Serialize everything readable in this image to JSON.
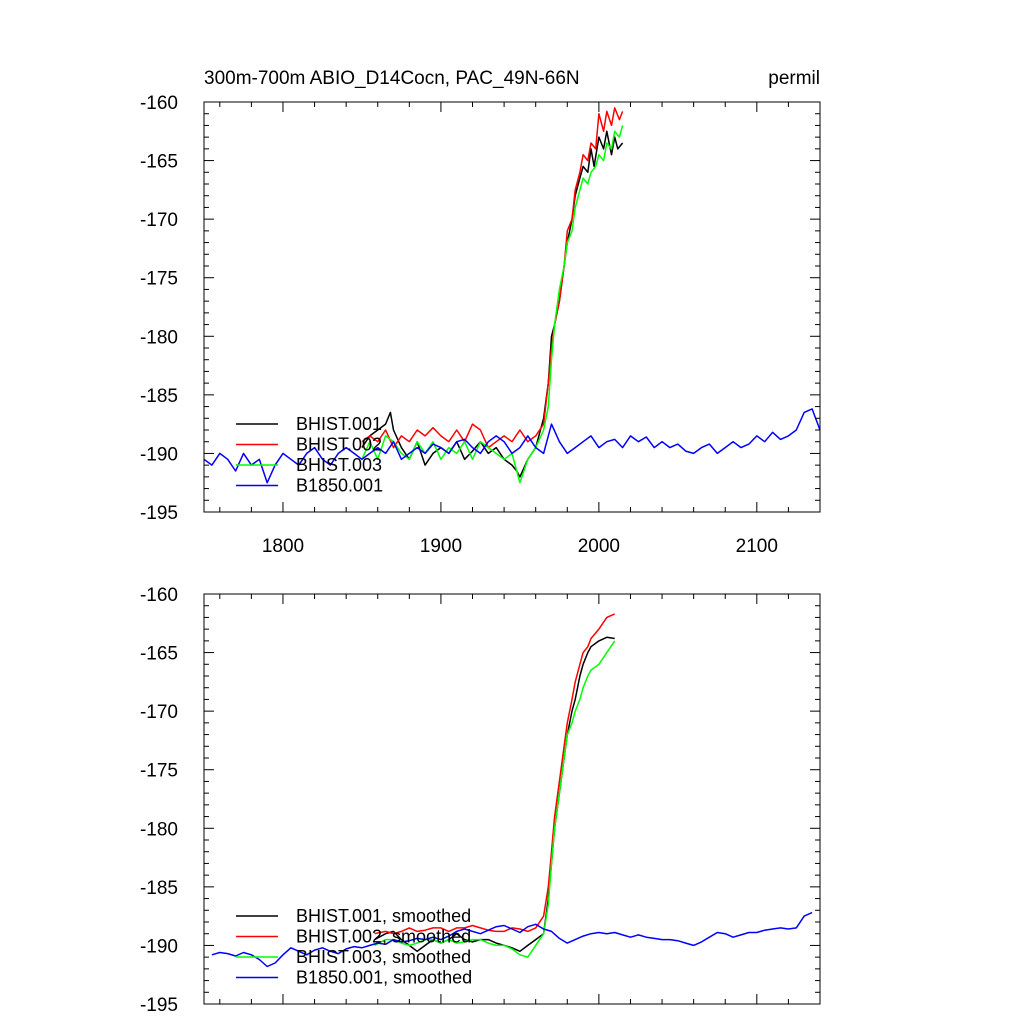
{
  "chart_data": [
    {
      "type": "line",
      "title_left": "300m-700m ABIO_D14Cocn, PAC_49N-66N",
      "title_right": "permil",
      "xlabel": "",
      "ylabel": "",
      "xlim": [
        1750,
        2140
      ],
      "ylim": [
        -195,
        -160
      ],
      "yticks": [
        "-160",
        "-165",
        "-170",
        "-175",
        "-180",
        "-185",
        "-190",
        "-195"
      ],
      "xticks": [
        "1800",
        "1900",
        "2000",
        "2100"
      ],
      "grid": false,
      "legend_position": "lower-left",
      "series": [
        {
          "name": "BHIST.001",
          "color": "#000000",
          "x": [
            1850,
            1855,
            1860,
            1865,
            1868,
            1870,
            1875,
            1880,
            1885,
            1890,
            1895,
            1900,
            1905,
            1910,
            1915,
            1920,
            1925,
            1930,
            1935,
            1940,
            1945,
            1948,
            1950,
            1955,
            1960,
            1965,
            1968,
            1970,
            1972,
            1975,
            1978,
            1980,
            1983,
            1985,
            1988,
            1990,
            1993,
            1995,
            1997,
            2000,
            2003,
            2005,
            2008,
            2010,
            2012,
            2015
          ],
          "values": [
            -189.5,
            -188.5,
            -188,
            -187.5,
            -186.5,
            -188,
            -189.5,
            -190.5,
            -189,
            -191,
            -190,
            -189.5,
            -190,
            -189,
            -190.5,
            -189.8,
            -189,
            -190,
            -189.5,
            -190.5,
            -191,
            -191.5,
            -192,
            -190.5,
            -189.5,
            -187,
            -184,
            -180,
            -179,
            -177,
            -174,
            -172,
            -170,
            -168,
            -166.5,
            -165.5,
            -166,
            -164,
            -165.5,
            -163,
            -164,
            -162.5,
            -164.5,
            -163,
            -164,
            -163.5
          ]
        },
        {
          "name": "BHIST.002",
          "color": "#ff0000",
          "x": [
            1850,
            1855,
            1860,
            1865,
            1870,
            1875,
            1880,
            1885,
            1890,
            1895,
            1900,
            1905,
            1910,
            1915,
            1920,
            1925,
            1930,
            1935,
            1940,
            1945,
            1950,
            1955,
            1960,
            1965,
            1968,
            1970,
            1972,
            1975,
            1978,
            1980,
            1983,
            1985,
            1988,
            1990,
            1993,
            1995,
            1998,
            2000,
            2003,
            2005,
            2008,
            2010,
            2013,
            2015
          ],
          "values": [
            -189,
            -188.5,
            -189,
            -188,
            -189.5,
            -188.5,
            -189,
            -188,
            -188.5,
            -187.8,
            -188.5,
            -189,
            -188,
            -189,
            -187.5,
            -188,
            -189.5,
            -189,
            -188.5,
            -189,
            -188,
            -189,
            -188.5,
            -187.5,
            -184,
            -181,
            -179,
            -177,
            -174,
            -171,
            -170,
            -167.5,
            -166,
            -164.5,
            -165,
            -163.5,
            -164,
            -161,
            -162.5,
            -160.8,
            -162,
            -160.5,
            -161.5,
            -160.8
          ]
        },
        {
          "name": "BHIST.003",
          "color": "#00ff00",
          "x": [
            1850,
            1855,
            1860,
            1865,
            1870,
            1875,
            1880,
            1885,
            1890,
            1895,
            1900,
            1905,
            1910,
            1915,
            1920,
            1925,
            1930,
            1935,
            1940,
            1945,
            1950,
            1955,
            1960,
            1965,
            1968,
            1970,
            1972,
            1975,
            1978,
            1980,
            1983,
            1985,
            1988,
            1990,
            1993,
            1995,
            1998,
            2000,
            2003,
            2005,
            2008,
            2010,
            2013,
            2015
          ],
          "values": [
            -190.5,
            -189,
            -190.5,
            -188.5,
            -189,
            -190,
            -190.5,
            -189,
            -190,
            -189,
            -190.5,
            -189.5,
            -190,
            -189,
            -190.5,
            -189,
            -189.5,
            -190,
            -190.5,
            -190,
            -192.5,
            -190.5,
            -189.5,
            -188,
            -186,
            -182,
            -179,
            -176,
            -174,
            -172,
            -171,
            -169,
            -167.5,
            -166.5,
            -167,
            -166,
            -165.5,
            -164.5,
            -165,
            -163.5,
            -164,
            -162.5,
            -163,
            -162
          ]
        },
        {
          "name": "B1850.001",
          "color": "#0000ff",
          "x": [
            1750,
            1755,
            1760,
            1765,
            1770,
            1775,
            1780,
            1785,
            1790,
            1795,
            1800,
            1805,
            1810,
            1815,
            1820,
            1825,
            1830,
            1835,
            1840,
            1845,
            1850,
            1855,
            1860,
            1865,
            1870,
            1875,
            1880,
            1885,
            1890,
            1895,
            1900,
            1905,
            1910,
            1915,
            1920,
            1925,
            1930,
            1935,
            1940,
            1945,
            1950,
            1955,
            1960,
            1965,
            1970,
            1975,
            1980,
            1985,
            1990,
            1995,
            2000,
            2005,
            2010,
            2015,
            2020,
            2025,
            2030,
            2035,
            2040,
            2045,
            2050,
            2055,
            2060,
            2065,
            2070,
            2075,
            2080,
            2085,
            2090,
            2095,
            2100,
            2105,
            2110,
            2115,
            2120,
            2125,
            2130,
            2135,
            2140
          ],
          "values": [
            -190.5,
            -191,
            -190,
            -190.5,
            -191.5,
            -190,
            -191,
            -190.5,
            -192.5,
            -191,
            -190,
            -190.5,
            -191,
            -190,
            -189.5,
            -190.5,
            -191,
            -190,
            -189.5,
            -190,
            -190.5,
            -190,
            -189.5,
            -190,
            -189,
            -190.5,
            -190,
            -189.5,
            -190,
            -189.2,
            -189.5,
            -190,
            -189,
            -188.8,
            -189.5,
            -190,
            -189,
            -188.5,
            -189,
            -190,
            -189.5,
            -188.5,
            -189.5,
            -190,
            -187.5,
            -189,
            -190,
            -189.5,
            -189,
            -188.5,
            -189.5,
            -189,
            -188.8,
            -189.5,
            -188.5,
            -189,
            -188.6,
            -189.5,
            -189,
            -189.5,
            -189.2,
            -189.8,
            -190,
            -189.5,
            -189.2,
            -190,
            -189.5,
            -189,
            -189.5,
            -189.2,
            -188.5,
            -189,
            -188.2,
            -188.8,
            -188.5,
            -188,
            -186.5,
            -186.2,
            -188
          ]
        }
      ]
    },
    {
      "type": "line",
      "xlabel": "",
      "ylabel": "",
      "xlim": [
        1750,
        2140
      ],
      "ylim": [
        -195,
        -160
      ],
      "yticks": [
        "-160",
        "-165",
        "-170",
        "-175",
        "-180",
        "-185",
        "-190",
        "-195"
      ],
      "grid": false,
      "legend_position": "lower-left",
      "series": [
        {
          "name": "BHIST.001, smoothed",
          "color": "#000000",
          "x": [
            1858,
            1865,
            1870,
            1875,
            1880,
            1885,
            1890,
            1895,
            1900,
            1905,
            1910,
            1915,
            1920,
            1925,
            1930,
            1935,
            1940,
            1945,
            1950,
            1955,
            1960,
            1965,
            1968,
            1970,
            1972,
            1975,
            1978,
            1980,
            1983,
            1985,
            1988,
            1990,
            1993,
            1995,
            2000,
            2005,
            2010
          ],
          "values": [
            -189.5,
            -189,
            -188.8,
            -189.5,
            -190,
            -190.5,
            -190,
            -189.5,
            -189.8,
            -189.5,
            -189,
            -189.5,
            -189.7,
            -189.5,
            -189.5,
            -189.8,
            -190,
            -190.2,
            -190.5,
            -190,
            -189.5,
            -189,
            -186,
            -183,
            -180,
            -177,
            -174,
            -172,
            -170,
            -169,
            -167,
            -166,
            -165,
            -164.5,
            -164,
            -163.7,
            -163.8
          ]
        },
        {
          "name": "BHIST.002, smoothed",
          "color": "#ff0000",
          "x": [
            1858,
            1865,
            1870,
            1875,
            1880,
            1885,
            1890,
            1895,
            1900,
            1905,
            1910,
            1915,
            1920,
            1925,
            1930,
            1935,
            1940,
            1945,
            1950,
            1955,
            1960,
            1965,
            1968,
            1970,
            1972,
            1975,
            1978,
            1980,
            1983,
            1985,
            1988,
            1990,
            1993,
            1995,
            2000,
            2005,
            2010
          ],
          "values": [
            -189,
            -188.8,
            -189,
            -188.8,
            -188.5,
            -188.8,
            -188.7,
            -188.5,
            -188.5,
            -188.8,
            -188.5,
            -188.5,
            -188.3,
            -188.5,
            -188.7,
            -188.8,
            -188.8,
            -188.5,
            -188.6,
            -188.8,
            -188.5,
            -187.5,
            -185,
            -182,
            -179,
            -176,
            -173,
            -171,
            -169,
            -167.5,
            -166,
            -165,
            -164.5,
            -163.8,
            -163,
            -162,
            -161.7
          ]
        },
        {
          "name": "BHIST.003, smoothed",
          "color": "#00ff00",
          "x": [
            1858,
            1865,
            1870,
            1875,
            1880,
            1885,
            1890,
            1895,
            1900,
            1905,
            1910,
            1915,
            1920,
            1925,
            1930,
            1935,
            1940,
            1945,
            1950,
            1955,
            1960,
            1965,
            1968,
            1970,
            1972,
            1975,
            1978,
            1980,
            1983,
            1985,
            1988,
            1990,
            1993,
            1995,
            2000,
            2005,
            2010
          ],
          "values": [
            -190,
            -189.5,
            -189.5,
            -189.8,
            -190,
            -189.8,
            -189.5,
            -189.5,
            -189.8,
            -189.5,
            -189.8,
            -189.7,
            -189.5,
            -189.5,
            -189.8,
            -190,
            -190,
            -190.3,
            -190.8,
            -191,
            -190,
            -189,
            -186.5,
            -183,
            -180,
            -177,
            -174,
            -172,
            -171,
            -170,
            -169,
            -168,
            -167,
            -166.5,
            -166,
            -165,
            -164
          ]
        },
        {
          "name": "B1850.001, smoothed",
          "color": "#0000ff",
          "x": [
            1755,
            1760,
            1765,
            1770,
            1775,
            1780,
            1785,
            1790,
            1795,
            1800,
            1805,
            1810,
            1815,
            1820,
            1825,
            1830,
            1835,
            1840,
            1845,
            1850,
            1855,
            1860,
            1865,
            1870,
            1875,
            1880,
            1885,
            1890,
            1895,
            1900,
            1905,
            1910,
            1915,
            1920,
            1925,
            1930,
            1935,
            1940,
            1945,
            1950,
            1955,
            1960,
            1965,
            1970,
            1975,
            1980,
            1985,
            1990,
            1995,
            2000,
            2005,
            2010,
            2015,
            2020,
            2025,
            2030,
            2035,
            2040,
            2045,
            2050,
            2055,
            2060,
            2065,
            2070,
            2075,
            2080,
            2085,
            2090,
            2095,
            2100,
            2105,
            2110,
            2115,
            2120,
            2125,
            2130,
            2135
          ],
          "values": [
            -190.8,
            -190.6,
            -190.7,
            -190.9,
            -190.6,
            -190.8,
            -191.2,
            -191.8,
            -191.5,
            -190.8,
            -190.2,
            -190.5,
            -190.8,
            -190.4,
            -190.2,
            -190.5,
            -190.7,
            -190.3,
            -190.1,
            -190.2,
            -190,
            -189.8,
            -189.9,
            -189.5,
            -189.7,
            -189.6,
            -189.4,
            -189.5,
            -189.3,
            -189.5,
            -189.2,
            -188.8,
            -188.6,
            -188.8,
            -189,
            -188.7,
            -188.4,
            -188.3,
            -188.6,
            -188.9,
            -188.4,
            -188.2,
            -188.6,
            -188.8,
            -189.4,
            -189.8,
            -189.5,
            -189.2,
            -189,
            -188.9,
            -189,
            -188.9,
            -189.1,
            -189.3,
            -189.1,
            -189.3,
            -189.4,
            -189.5,
            -189.5,
            -189.6,
            -189.8,
            -190,
            -189.7,
            -189.3,
            -188.9,
            -189,
            -189.3,
            -189.1,
            -188.9,
            -188.9,
            -188.7,
            -188.6,
            -188.5,
            -188.6,
            -188.5,
            -187.5,
            -187.2
          ]
        }
      ]
    }
  ]
}
